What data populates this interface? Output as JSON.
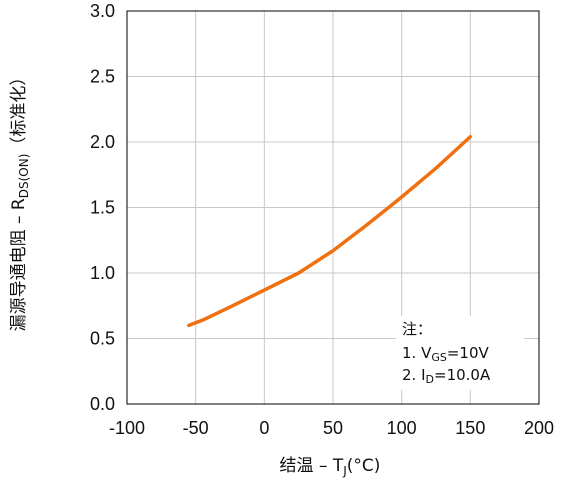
{
  "chart_data": {
    "type": "line",
    "title": "",
    "xlabel": {
      "main": "结温 – T",
      "sub": "J",
      "tail": "(°C)"
    },
    "ylabel": {
      "main": "漏源导通电阻 – R",
      "sub": "DS(ON)",
      "tail": "（标准化）"
    },
    "xlim": [
      -100,
      200
    ],
    "ylim": [
      0.0,
      3.0
    ],
    "x_ticks": [
      "-100",
      "-50",
      "0",
      "50",
      "100",
      "150",
      "200"
    ],
    "y_ticks": [
      "0.0",
      "0.5",
      "1.0",
      "1.5",
      "2.0",
      "2.5",
      "3.0"
    ],
    "grid": true,
    "series": [
      {
        "color": "#f07010",
        "x": [
          -55,
          -45,
          -25,
          0,
          25,
          50,
          75,
          100,
          125,
          150
        ],
        "y": [
          0.6,
          0.64,
          0.74,
          0.87,
          1.0,
          1.17,
          1.37,
          1.58,
          1.8,
          2.04
        ]
      }
    ],
    "note": {
      "title": "注：",
      "line1": {
        "pre": "1. V",
        "sub": "GS",
        "post": "=10V"
      },
      "line2": {
        "pre": "2. I",
        "sub": "D",
        "post": "=10.0A"
      }
    }
  }
}
